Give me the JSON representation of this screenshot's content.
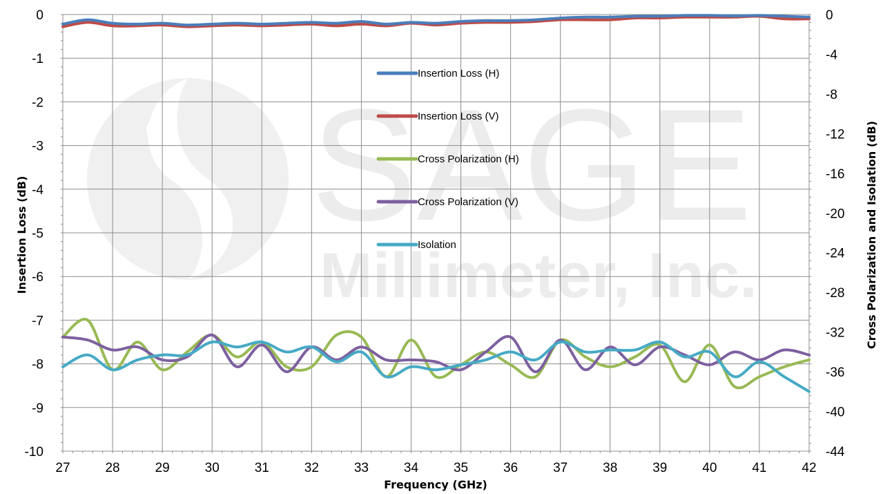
{
  "watermark": {
    "line1": "SAGE",
    "line2": "Millimeter, Inc."
  },
  "colors": {
    "insertion_h": "#4a7ebb",
    "insertion_v": "#be4b48",
    "crosspol_h": "#98b954",
    "crosspol_v": "#7d60a0",
    "isolation": "#46aac5",
    "grid": "#8c8c8c"
  },
  "chart_data": {
    "type": "line",
    "xlabel": "Frequency (GHz)",
    "ylabel": "Insertion Loss (dB)",
    "y2label": "Cross Polarization and Isolation (dB)",
    "xlim": [
      27,
      42
    ],
    "ylim": [
      -10,
      0
    ],
    "y2lim": [
      -44,
      0
    ],
    "grid": true,
    "legend_position": "center",
    "x_ticks": [
      "27",
      "28",
      "29",
      "30",
      "31",
      "32",
      "33",
      "34",
      "35",
      "36",
      "37",
      "38",
      "39",
      "40",
      "41",
      "42"
    ],
    "y_ticks": [
      "0",
      "-1",
      "-2",
      "-3",
      "-4",
      "-5",
      "-6",
      "-7",
      "-8",
      "-9",
      "-10"
    ],
    "y2_ticks": [
      "0",
      "-4",
      "-8",
      "-12",
      "-16",
      "-20",
      "-24",
      "-28",
      "-32",
      "-36",
      "-40",
      "-44"
    ],
    "x": [
      27.0,
      27.5,
      28.0,
      28.5,
      29.0,
      29.5,
      30.0,
      30.5,
      31.0,
      31.5,
      32.0,
      32.5,
      33.0,
      33.5,
      34.0,
      34.5,
      35.0,
      35.5,
      36.0,
      36.5,
      37.0,
      37.5,
      38.0,
      38.5,
      39.0,
      39.5,
      40.0,
      40.5,
      41.0,
      41.5,
      42.0
    ],
    "series": [
      {
        "name": "Insertion Loss (H)",
        "axis": "left",
        "color_key": "insertion_h",
        "values": [
          -0.22,
          -0.12,
          -0.2,
          -0.22,
          -0.2,
          -0.24,
          -0.22,
          -0.2,
          -0.22,
          -0.2,
          -0.18,
          -0.2,
          -0.16,
          -0.22,
          -0.18,
          -0.2,
          -0.16,
          -0.14,
          -0.14,
          -0.12,
          -0.08,
          -0.06,
          -0.06,
          -0.04,
          -0.04,
          -0.02,
          -0.02,
          -0.03,
          -0.02,
          -0.04,
          -0.06
        ]
      },
      {
        "name": "Insertion Loss (V)",
        "axis": "left",
        "color_key": "insertion_v",
        "values": [
          -0.28,
          -0.18,
          -0.26,
          -0.26,
          -0.24,
          -0.28,
          -0.26,
          -0.24,
          -0.26,
          -0.24,
          -0.22,
          -0.26,
          -0.22,
          -0.26,
          -0.2,
          -0.24,
          -0.2,
          -0.18,
          -0.18,
          -0.16,
          -0.12,
          -0.12,
          -0.12,
          -0.08,
          -0.08,
          -0.06,
          -0.06,
          -0.06,
          -0.04,
          -0.1,
          -0.1
        ]
      },
      {
        "name": "Cross Polarization (H)",
        "axis": "right",
        "color_key": "crosspol_h",
        "values": [
          -32.5,
          -30.8,
          -35.8,
          -33.0,
          -35.8,
          -34.0,
          -32.3,
          -34.5,
          -33.0,
          -35.5,
          -35.5,
          -32.3,
          -32.5,
          -36.5,
          -32.8,
          -36.5,
          -35.3,
          -34.0,
          -35.3,
          -36.5,
          -32.8,
          -34.5,
          -35.5,
          -34.5,
          -33.3,
          -37.0,
          -33.3,
          -37.5,
          -36.5,
          -35.5,
          -34.8
        ]
      },
      {
        "name": "Cross Polarization (V)",
        "axis": "right",
        "color_key": "crosspol_v",
        "values": [
          -32.5,
          -32.8,
          -33.8,
          -33.5,
          -34.8,
          -34.5,
          -32.3,
          -35.5,
          -33.3,
          -36.0,
          -33.5,
          -34.8,
          -33.5,
          -34.8,
          -34.8,
          -35.0,
          -35.8,
          -34.0,
          -32.5,
          -36.0,
          -32.8,
          -35.8,
          -33.5,
          -35.3,
          -33.5,
          -34.3,
          -35.3,
          -34.0,
          -34.8,
          -33.8,
          -34.3
        ]
      },
      {
        "name": "Isolation",
        "axis": "right",
        "color_key": "isolation",
        "values": [
          -35.5,
          -34.3,
          -35.8,
          -34.8,
          -34.3,
          -34.3,
          -33.0,
          -33.5,
          -33.0,
          -34.0,
          -33.5,
          -35.0,
          -34.0,
          -36.5,
          -35.5,
          -35.8,
          -35.3,
          -34.8,
          -34.0,
          -34.8,
          -33.0,
          -34.0,
          -33.8,
          -33.8,
          -33.0,
          -34.5,
          -34.0,
          -36.5,
          -35.0,
          -36.5,
          -38.0
        ]
      }
    ]
  }
}
